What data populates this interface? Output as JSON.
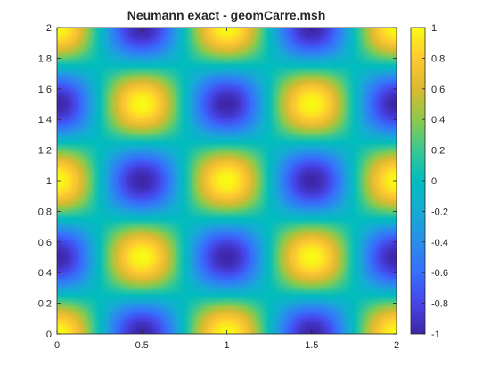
{
  "chart_data": {
    "type": "heatmap",
    "title": "Neumann exact - geomCarre.msh",
    "xlabel": "",
    "ylabel": "",
    "function": "cos(2*pi*x) * cos(2*pi*y)",
    "xlim": [
      0,
      2
    ],
    "ylim": [
      0,
      2
    ],
    "x_ticks": [
      "0",
      "0.5",
      "1",
      "1.5",
      "2"
    ],
    "y_ticks": [
      "0",
      "0.2",
      "0.4",
      "0.6",
      "0.8",
      "1",
      "1.2",
      "1.4",
      "1.6",
      "1.8",
      "2"
    ],
    "colorbar": {
      "range": [
        -1,
        1
      ],
      "ticks": [
        "-1",
        "-0.8",
        "-0.6",
        "-0.4",
        "-0.2",
        "0",
        "0.2",
        "0.4",
        "0.6",
        "0.8",
        "1"
      ]
    },
    "colormap": "parula",
    "extrema": [
      {
        "x": 0,
        "y": 0,
        "value": 1
      },
      {
        "x": 0.5,
        "y": 0,
        "value": -1
      },
      {
        "x": 1,
        "y": 0,
        "value": 1
      },
      {
        "x": 1.5,
        "y": 0,
        "value": -1
      },
      {
        "x": 2,
        "y": 0,
        "value": 1
      },
      {
        "x": 0,
        "y": 0.5,
        "value": -1
      },
      {
        "x": 0.5,
        "y": 0.5,
        "value": 1
      },
      {
        "x": 1,
        "y": 0.5,
        "value": -1
      },
      {
        "x": 1.5,
        "y": 0.5,
        "value": 1
      },
      {
        "x": 2,
        "y": 0.5,
        "value": -1
      },
      {
        "x": 0,
        "y": 1,
        "value": 1
      },
      {
        "x": 0.5,
        "y": 1,
        "value": -1
      },
      {
        "x": 1,
        "y": 1,
        "value": 1
      },
      {
        "x": 1.5,
        "y": 1,
        "value": -1
      },
      {
        "x": 2,
        "y": 1,
        "value": 1
      },
      {
        "x": 0,
        "y": 1.5,
        "value": -1
      },
      {
        "x": 0.5,
        "y": 1.5,
        "value": 1
      },
      {
        "x": 1,
        "y": 1.5,
        "value": -1
      },
      {
        "x": 1.5,
        "y": 1.5,
        "value": 1
      },
      {
        "x": 2,
        "y": 1.5,
        "value": -1
      },
      {
        "x": 0,
        "y": 2,
        "value": 1
      },
      {
        "x": 0.5,
        "y": 2,
        "value": -1
      },
      {
        "x": 1,
        "y": 2,
        "value": 1
      },
      {
        "x": 1.5,
        "y": 2,
        "value": -1
      },
      {
        "x": 2,
        "y": 2,
        "value": 1
      }
    ],
    "grid": false,
    "legend": "none"
  }
}
